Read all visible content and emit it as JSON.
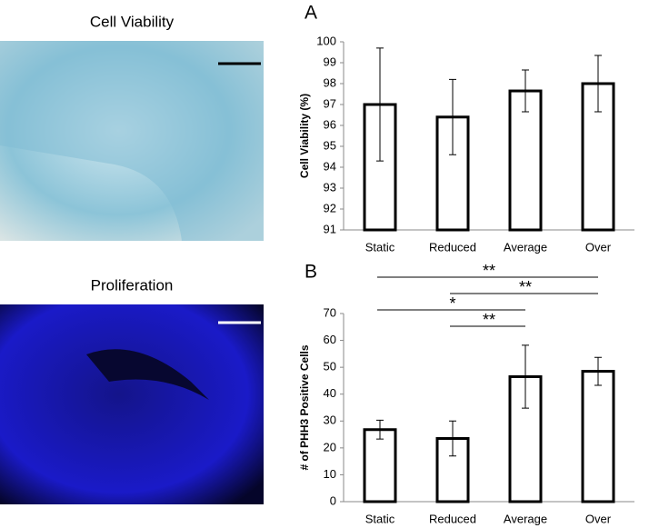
{
  "images": [
    {
      "title": "Cell Viability"
    },
    {
      "title": "Proliferation"
    }
  ],
  "chart_data": [
    {
      "type": "bar",
      "panel": "A",
      "ylabel": "Cell Viability (%)",
      "categories": [
        "Static",
        "Reduced",
        "Average",
        "Over"
      ],
      "values": [
        97.0,
        96.4,
        97.65,
        98.0
      ],
      "errors": [
        2.7,
        1.8,
        1.0,
        1.35
      ],
      "ylim": [
        91,
        100
      ],
      "yticks": [
        91,
        92,
        93,
        94,
        95,
        96,
        97,
        98,
        99,
        100
      ],
      "color": "#ffffff"
    },
    {
      "type": "bar",
      "panel": "B",
      "ylabel": "# of PHH3 Positive Cells",
      "categories": [
        "Static",
        "Reduced",
        "Average",
        "Over"
      ],
      "values": [
        26.8,
        23.5,
        46.5,
        48.5
      ],
      "errors": [
        3.5,
        6.5,
        11.7,
        5.2
      ],
      "ylim": [
        0,
        70
      ],
      "yticks": [
        0,
        10,
        20,
        30,
        40,
        50,
        60,
        70
      ],
      "color": "#ffffff",
      "significance": [
        {
          "between": [
            "Static",
            "Over"
          ],
          "text": "**"
        },
        {
          "between": [
            "Reduced",
            "Over"
          ],
          "text": "**"
        },
        {
          "between": [
            "Static",
            "Average"
          ],
          "text": "*"
        },
        {
          "between": [
            "Reduced",
            "Average"
          ],
          "text": "**"
        }
      ]
    }
  ]
}
